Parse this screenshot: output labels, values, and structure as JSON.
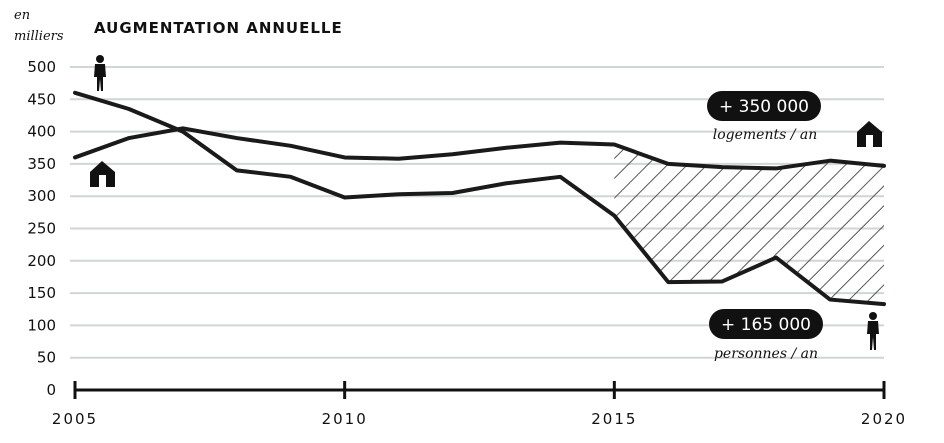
{
  "chart_data": {
    "type": "line",
    "title": "AUGMENTATION ANNUELLE",
    "unit_label": [
      "en",
      "milliers"
    ],
    "x": [
      2005,
      2006,
      2007,
      2008,
      2009,
      2010,
      2011,
      2012,
      2013,
      2014,
      2015,
      2016,
      2017,
      2018,
      2019,
      2020
    ],
    "x_ticks": [
      "2005",
      "2010",
      "2015",
      "2020"
    ],
    "y_ticks": [
      "0",
      "50",
      "100",
      "150",
      "200",
      "250",
      "300",
      "350",
      "400",
      "450",
      "500"
    ],
    "xlim": [
      2005,
      2020
    ],
    "ylim": [
      0,
      500
    ],
    "grid": true,
    "series": [
      {
        "id": "logements",
        "values": [
          360,
          390,
          405,
          390,
          378,
          360,
          358,
          365,
          375,
          383,
          380,
          350,
          345,
          343,
          355,
          347
        ]
      },
      {
        "id": "personnes",
        "values": [
          460,
          435,
          400,
          340,
          330,
          298,
          303,
          305,
          320,
          330,
          270,
          167,
          168,
          205,
          140,
          133
        ]
      }
    ],
    "hatched_gap_from": 2015,
    "annotations": {
      "logements": {
        "value": "+ 350 000",
        "label": "logements / an"
      },
      "personnes": {
        "value": "+ 165 000",
        "label": "personnes / an"
      }
    },
    "icons": [
      "house-icon",
      "person-icon"
    ]
  }
}
